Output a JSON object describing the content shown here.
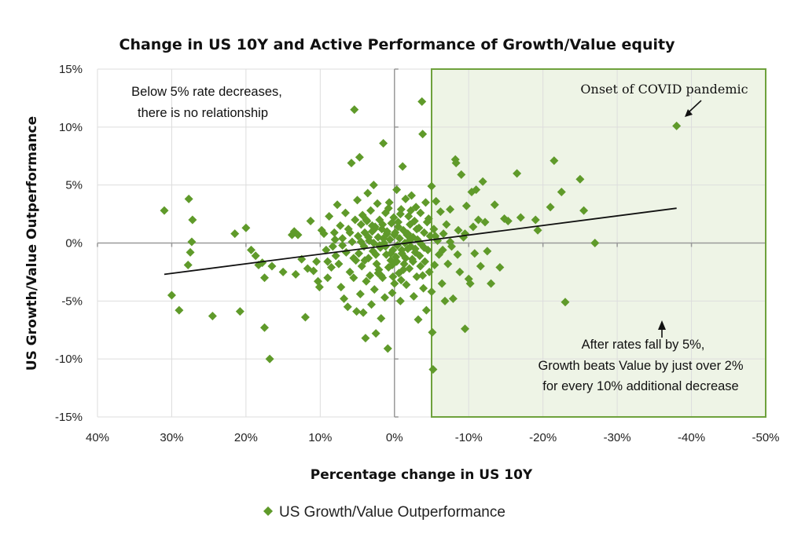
{
  "chart_data": {
    "type": "scatter",
    "title": "Change in US 10Y and Active Performance of Growth/Value equity",
    "xlabel": "Percentage change in US 10Y",
    "ylabel": "US Growth/Value Outperformance",
    "xlim": [
      40,
      -50
    ],
    "ylim": [
      -15,
      15
    ],
    "x_reversed": true,
    "x_ticks": [
      40,
      30,
      20,
      10,
      0,
      -10,
      -20,
      -30,
      -40,
      -50
    ],
    "x_tick_labels": [
      "40%",
      "30%",
      "20%",
      "10%",
      "0%",
      "-10%",
      "-20%",
      "-30%",
      "-40%",
      "-50%"
    ],
    "y_ticks": [
      15,
      10,
      5,
      0,
      -5,
      -10,
      -15
    ],
    "y_tick_labels": [
      "15%",
      "10%",
      "5%",
      "0%",
      "-5%",
      "-10%",
      "-15%"
    ],
    "grid": true,
    "legend": {
      "position": "bottom",
      "entries": [
        "US Growth/Value Outperformance"
      ]
    },
    "colors": {
      "marker": "#5f9a2a",
      "region_fill": "#eef4e6",
      "region_border": "#6ea13c",
      "trendline": "#111111",
      "grid": "#dddddd",
      "zero_axis": "#999999"
    },
    "highlight_region": {
      "x_from": -5,
      "x_to": -50,
      "y_from": -15,
      "y_to": 15
    },
    "trendline": {
      "x": [
        31,
        -38
      ],
      "y": [
        -2.7,
        3.0
      ]
    },
    "annotations": [
      {
        "id": "below5",
        "lines": [
          "Below 5% rate decreases,",
          "there is no relationship"
        ]
      },
      {
        "id": "covid",
        "lines": [
          "Onset of COVID pandemic"
        ],
        "target": [
          -38,
          10.1
        ]
      },
      {
        "id": "after5",
        "lines": [
          "After rates fall by 5%,",
          "Growth beats Value by just over 2%",
          "for every 10% additional decrease"
        ]
      }
    ],
    "series": [
      {
        "name": "US Growth/Value Outperformance",
        "points": [
          [
            31,
            2.8
          ],
          [
            27.7,
            3.8
          ],
          [
            27.2,
            2.0
          ],
          [
            27.3,
            0.1
          ],
          [
            27.5,
            -0.8
          ],
          [
            27.8,
            -1.9
          ],
          [
            30,
            -4.5
          ],
          [
            29,
            -5.8
          ],
          [
            24.5,
            -6.3
          ],
          [
            21.5,
            0.8
          ],
          [
            20,
            1.3
          ],
          [
            20.8,
            -5.9
          ],
          [
            19.3,
            -0.6
          ],
          [
            18.7,
            -1.1
          ],
          [
            18.3,
            -1.9
          ],
          [
            17.8,
            -1.7
          ],
          [
            17.5,
            -3.0
          ],
          [
            17.5,
            -7.3
          ],
          [
            16.8,
            -10.0
          ],
          [
            16.5,
            -2.0
          ],
          [
            15,
            -2.5
          ],
          [
            13.8,
            0.7
          ],
          [
            13.5,
            1.0
          ],
          [
            13.3,
            -2.7
          ],
          [
            13,
            0.7
          ],
          [
            12.5,
            -1.4
          ],
          [
            12,
            -6.4
          ],
          [
            11.7,
            -2.2
          ],
          [
            11.3,
            1.9
          ],
          [
            10.9,
            -2.4
          ],
          [
            10.5,
            -1.6
          ],
          [
            10.3,
            -3.3
          ],
          [
            10.1,
            -3.8
          ],
          [
            9.8,
            1.1
          ],
          [
            9.5,
            0.8
          ],
          [
            9.2,
            -0.6
          ],
          [
            9,
            -3.0
          ],
          [
            8.8,
            2.3
          ],
          [
            8.5,
            -2.1
          ],
          [
            8.3,
            -0.3
          ],
          [
            8.1,
            0.9
          ],
          [
            7.9,
            -1.1
          ],
          [
            7.7,
            3.3
          ],
          [
            7.5,
            -1.8
          ],
          [
            7.3,
            1.5
          ],
          [
            7.2,
            -3.8
          ],
          [
            7.0,
            0.4
          ],
          [
            6.8,
            -4.8
          ],
          [
            6.6,
            2.6
          ],
          [
            6.5,
            -0.8
          ],
          [
            6.3,
            -5.5
          ],
          [
            6.2,
            1.2
          ],
          [
            6.0,
            -2.5
          ],
          [
            5.8,
            6.9
          ],
          [
            5.7,
            0.1
          ],
          [
            5.5,
            -3.0
          ],
          [
            5.4,
            11.5
          ],
          [
            5.3,
            2.0
          ],
          [
            5.2,
            -1.5
          ],
          [
            5.1,
            -5.9
          ],
          [
            5.0,
            3.7
          ],
          [
            4.9,
            0.6
          ],
          [
            4.8,
            -0.9
          ],
          [
            4.7,
            7.4
          ],
          [
            4.6,
            -4.4
          ],
          [
            4.5,
            1.6
          ],
          [
            4.4,
            -2.0
          ],
          [
            4.3,
            2.4
          ],
          [
            4.2,
            -6.0
          ],
          [
            4.1,
            -0.3
          ],
          [
            4.0,
            0.9
          ],
          [
            3.9,
            -8.2
          ],
          [
            3.8,
            -3.3
          ],
          [
            3.7,
            1.9
          ],
          [
            3.6,
            4.3
          ],
          [
            3.5,
            -1.3
          ],
          [
            3.4,
            0.2
          ],
          [
            3.3,
            -2.8
          ],
          [
            3.2,
            2.8
          ],
          [
            3.1,
            -5.3
          ],
          [
            3.0,
            1.0
          ],
          [
            2.9,
            -0.7
          ],
          [
            2.8,
            5.0
          ],
          [
            2.7,
            -4.0
          ],
          [
            2.6,
            1.4
          ],
          [
            2.5,
            -7.8
          ],
          [
            2.4,
            -1.8
          ],
          [
            2.3,
            3.4
          ],
          [
            2.2,
            0.5
          ],
          [
            2.1,
            -2.3
          ],
          [
            2.0,
            2.0
          ],
          [
            1.9,
            -0.4
          ],
          [
            1.8,
            -6.5
          ],
          [
            1.7,
            1.2
          ],
          [
            1.6,
            -3.0
          ],
          [
            1.5,
            8.6
          ],
          [
            1.4,
            0.0
          ],
          [
            1.3,
            -4.7
          ],
          [
            1.2,
            2.6
          ],
          [
            1.1,
            -1.0
          ],
          [
            1.0,
            0.8
          ],
          [
            0.9,
            -9.1
          ],
          [
            0.8,
            -2.1
          ],
          [
            0.7,
            3.5
          ],
          [
            0.6,
            0.3
          ],
          [
            0.5,
            -1.5
          ],
          [
            0.4,
            1.7
          ],
          [
            0.3,
            -4.3
          ],
          [
            0.2,
            -0.6
          ],
          [
            0.1,
            2.2
          ],
          [
            0.0,
            -3.5
          ],
          [
            -0.1,
            0.9
          ],
          [
            -0.2,
            -1.2
          ],
          [
            -0.3,
            4.6
          ],
          [
            -0.4,
            -0.2
          ],
          [
            -0.5,
            1.4
          ],
          [
            -0.6,
            -2.6
          ],
          [
            -0.7,
            0.4
          ],
          [
            -0.8,
            -5.0
          ],
          [
            -0.9,
            2.9
          ],
          [
            -1.0,
            -0.9
          ],
          [
            -1.1,
            6.6
          ],
          [
            -1.2,
            1.1
          ],
          [
            -1.3,
            -1.8
          ],
          [
            -1.4,
            0.0
          ],
          [
            -1.5,
            3.8
          ],
          [
            -1.6,
            -3.6
          ],
          [
            -1.7,
            0.7
          ],
          [
            -1.8,
            -0.5
          ],
          [
            -1.9,
            2.3
          ],
          [
            -2.0,
            -2.2
          ],
          [
            -2.1,
            1.6
          ],
          [
            -2.2,
            -0.3
          ],
          [
            -2.3,
            4.1
          ],
          [
            -2.4,
            -1.4
          ],
          [
            -2.5,
            0.5
          ],
          [
            -2.6,
            -4.6
          ],
          [
            -2.7,
            1.9
          ],
          [
            -2.8,
            -0.8
          ],
          [
            -2.9,
            3.1
          ],
          [
            -3.0,
            -2.9
          ],
          [
            -3.1,
            0.3
          ],
          [
            -3.2,
            -6.6
          ],
          [
            -3.3,
            1.3
          ],
          [
            -3.4,
            -1.1
          ],
          [
            -3.5,
            2.6
          ],
          [
            -3.6,
            -0.1
          ],
          [
            -3.7,
            12.2
          ],
          [
            -3.8,
            9.4
          ],
          [
            -3.9,
            -3.9
          ],
          [
            -4.0,
            0.9
          ],
          [
            -4.1,
            -1.6
          ],
          [
            -4.2,
            3.5
          ],
          [
            -4.3,
            -5.8
          ],
          [
            -4.4,
            1.8
          ],
          [
            -4.5,
            -0.6
          ],
          [
            -4.6,
            2.1
          ],
          [
            -4.7,
            -2.5
          ],
          [
            -4.8,
            0.6
          ],
          [
            -5.0,
            4.9
          ],
          [
            -5.0,
            -4.2
          ],
          [
            -5.1,
            -7.7
          ],
          [
            -5.2,
            -10.9
          ],
          [
            -5.3,
            1.2
          ],
          [
            -5.4,
            -1.9
          ],
          [
            -5.6,
            3.6
          ],
          [
            -5.8,
            0.2
          ],
          [
            -6.0,
            -1.0
          ],
          [
            -6.2,
            2.7
          ],
          [
            -6.4,
            -3.5
          ],
          [
            -6.6,
            0.8
          ],
          [
            -6.8,
            -5.0
          ],
          [
            -7.0,
            1.6
          ],
          [
            -7.2,
            -1.8
          ],
          [
            -7.5,
            2.9
          ],
          [
            -7.7,
            -0.3
          ],
          [
            -7.9,
            -4.8
          ],
          [
            -8.2,
            7.2
          ],
          [
            -8.3,
            6.9
          ],
          [
            -8.6,
            1.1
          ],
          [
            -8.8,
            -2.5
          ],
          [
            -9.0,
            5.9
          ],
          [
            -9.3,
            0.5
          ],
          [
            -9.5,
            -7.4
          ],
          [
            -9.7,
            3.2
          ],
          [
            -10.0,
            -3.1
          ],
          [
            -10.2,
            -3.5
          ],
          [
            -10.4,
            4.4
          ],
          [
            -10.6,
            1.4
          ],
          [
            -10.8,
            -0.9
          ],
          [
            -11.0,
            4.6
          ],
          [
            -11.3,
            2.0
          ],
          [
            -11.6,
            -2.0
          ],
          [
            -11.9,
            5.3
          ],
          [
            -12.2,
            1.8
          ],
          [
            -12.5,
            -0.7
          ],
          [
            -13.0,
            -3.5
          ],
          [
            -13.5,
            3.3
          ],
          [
            -14.2,
            -2.1
          ],
          [
            -14.8,
            2.1
          ],
          [
            -15.3,
            1.9
          ],
          [
            -16.5,
            6.0
          ],
          [
            -17.0,
            2.2
          ],
          [
            -19.0,
            2.0
          ],
          [
            -19.3,
            1.1
          ],
          [
            -21.0,
            3.1
          ],
          [
            -21.5,
            7.1
          ],
          [
            -22.5,
            4.4
          ],
          [
            -23.0,
            -5.1
          ],
          [
            -25.0,
            5.5
          ],
          [
            -25.5,
            2.8
          ],
          [
            -27.0,
            0.0
          ],
          [
            -38.0,
            10.1
          ],
          [
            3.5,
            0.5
          ],
          [
            2.0,
            -0.2
          ],
          [
            1.0,
            1.0
          ],
          [
            -1.0,
            -0.6
          ],
          [
            -2.0,
            0.2
          ],
          [
            0.5,
            -0.9
          ],
          [
            1.5,
            0.4
          ],
          [
            -0.5,
            1.8
          ],
          [
            2.5,
            -1.0
          ],
          [
            -1.5,
            -1.3
          ],
          [
            3.0,
            1.5
          ],
          [
            -3.0,
            1.2
          ],
          [
            4.0,
            -1.5
          ],
          [
            -4.0,
            -0.4
          ],
          [
            0.0,
            0.7
          ],
          [
            1.8,
            -2.8
          ],
          [
            -0.8,
            2.5
          ],
          [
            2.8,
            0.0
          ],
          [
            -2.5,
            -1.6
          ],
          [
            1.2,
            -0.3
          ],
          [
            -1.8,
            0.8
          ],
          [
            0.3,
            -1.9
          ],
          [
            -0.3,
            -1.6
          ],
          [
            6.0,
            0.9
          ],
          [
            5.5,
            -1.3
          ],
          [
            4.5,
            0.1
          ],
          [
            -5.5,
            0.6
          ],
          [
            -6.5,
            -0.6
          ],
          [
            -7.5,
            0.1
          ],
          [
            -3.5,
            -2.0
          ],
          [
            2.2,
            -2.6
          ],
          [
            -2.2,
            2.8
          ],
          [
            0.8,
            3.0
          ],
          [
            -0.9,
            -3.2
          ],
          [
            3.8,
            2.0
          ],
          [
            -3.8,
            -2.8
          ],
          [
            7.0,
            -0.2
          ],
          [
            8.0,
            0.3
          ],
          [
            9.0,
            -1.6
          ],
          [
            -8.5,
            -1.0
          ],
          [
            -9.5,
            0.8
          ],
          [
            1.6,
            1.6
          ],
          [
            -1.2,
            -2.3
          ],
          [
            0.2,
            -2.9
          ],
          [
            2.7,
            1.2
          ],
          [
            -2.8,
            -0.5
          ]
        ]
      }
    ]
  }
}
